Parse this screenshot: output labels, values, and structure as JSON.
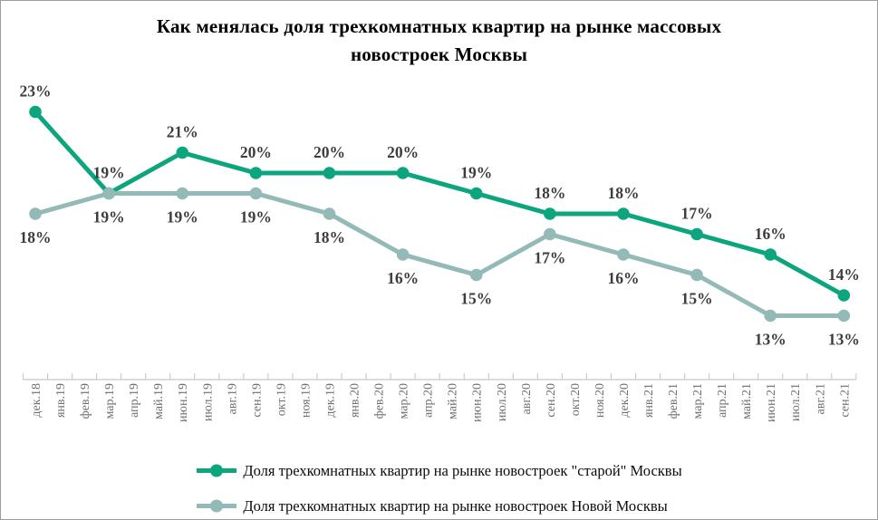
{
  "title": {
    "line1": "Как менялась доля трехкомнатных квартир на рынке массовых",
    "line2": "новостроек Москвы"
  },
  "chart_data": {
    "type": "line",
    "title": "Как менялась доля трехкомнатных квартир на рынке массовых новостроек Москвы",
    "x_categories": [
      "дек.18",
      "янв.19",
      "фев.19",
      "мар.19",
      "апр.19",
      "май.19",
      "июн.19",
      "июл.19",
      "авг.19",
      "сен.19",
      "окт.19",
      "ноя.19",
      "дек.19",
      "янв.20",
      "фев.20",
      "мар.20",
      "апр.20",
      "май.20",
      "июн.20",
      "июл.20",
      "авг.20",
      "сен.20",
      "окт.20",
      "ноя.20",
      "дек.20",
      "янв.21",
      "фев.21",
      "мар.21",
      "апр.21",
      "май.21",
      "июн.21",
      "июл.21",
      "авг.21",
      "сен.21"
    ],
    "data_point_categories": [
      "дек.18",
      "мар.19",
      "июн.19",
      "сен.19",
      "дек.19",
      "мар.20",
      "июн.20",
      "сен.20",
      "дек.20",
      "мар.21",
      "июн.21",
      "сен.21"
    ],
    "marker_month_indices": [
      0,
      3,
      6,
      9,
      12,
      15,
      18,
      21,
      24,
      27,
      30,
      33
    ],
    "series": [
      {
        "name": "Доля трехкомнатных квартир на рынке новостроек \"старой\" Москвы",
        "color": "#0CA57E",
        "values": [
          23,
          19,
          21,
          20,
          20,
          20,
          19,
          18,
          18,
          17,
          16,
          14
        ],
        "data_label_position": "above"
      },
      {
        "name": "Доля трехкомнатных квартир на рынке новостроек Новой Москвы",
        "color": "#93BAB7",
        "values": [
          18,
          19,
          19,
          19,
          18,
          16,
          15,
          17,
          16,
          15,
          13,
          13
        ],
        "data_label_position": "below"
      }
    ],
    "data_label_suffix": "%",
    "data_label_color": "#3D3D3D",
    "axis_color": "#C8C8C8",
    "axis_label_color": "#6E6E6E",
    "ylim": [
      10,
      24.5
    ],
    "grid": false,
    "legend_position": "bottom"
  }
}
